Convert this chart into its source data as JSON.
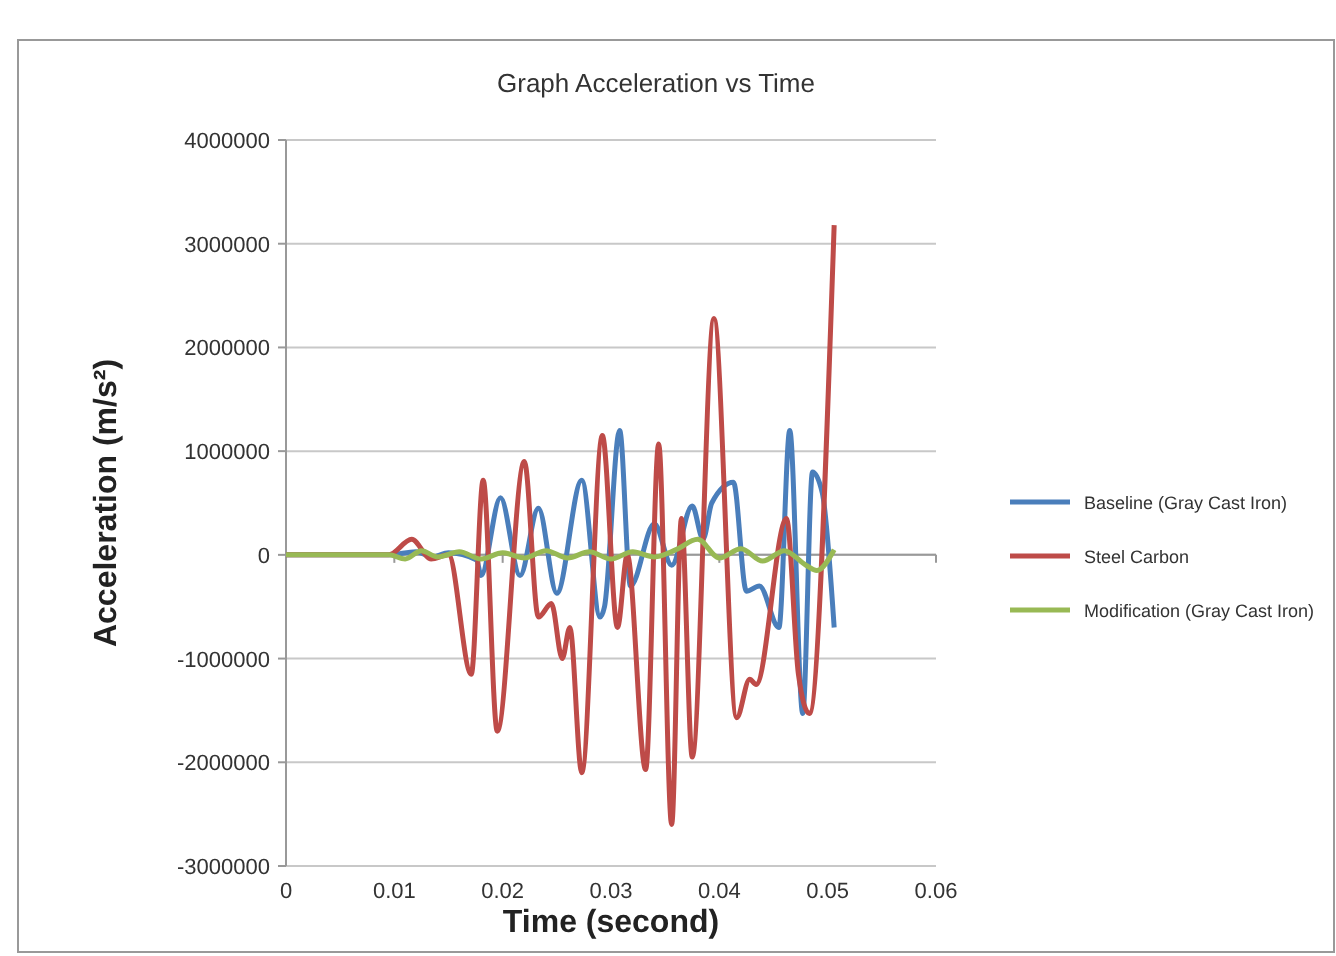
{
  "chart_data": {
    "type": "line",
    "title": "Graph Acceleration vs Time",
    "xlabel": "Time (second)",
    "ylabel": "Acceleration (m/s²)",
    "xlim": [
      0,
      0.06
    ],
    "xticks": [
      0,
      0.01,
      0.02,
      0.03,
      0.04,
      0.05,
      0.06
    ],
    "ylim": [
      -3000000,
      4000000
    ],
    "yticks": [
      -3000000,
      -2000000,
      -1000000,
      0,
      1000000,
      2000000,
      3000000,
      4000000
    ],
    "grid": "y",
    "legend": "right",
    "marker": "none",
    "line_style": "solid",
    "series": [
      {
        "name": "Baseline (Gray Cast Iron)",
        "color": "#4a7ebb",
        "x": [
          0,
          0.0095,
          0.012,
          0.0135,
          0.015,
          0.0176,
          0.018,
          0.0198,
          0.0216,
          0.0233,
          0.025,
          0.0273,
          0.029,
          0.0294,
          0.0308,
          0.0318,
          0.034,
          0.0356,
          0.0375,
          0.0385,
          0.0393,
          0.0413,
          0.0425,
          0.0437,
          0.0455,
          0.0465,
          0.0477,
          0.0486,
          0.0495,
          0.0506
        ],
        "values": [
          0,
          0,
          30000,
          -20000,
          20000,
          -50000,
          -200000,
          550000,
          -200000,
          450000,
          -370000,
          720000,
          -600000,
          -500000,
          1200000,
          -300000,
          300000,
          -100000,
          470000,
          150000,
          500000,
          700000,
          -350000,
          -300000,
          -700000,
          1200000,
          -1530000,
          800000,
          600000,
          -700000
        ]
      },
      {
        "name": "Steel Carbon",
        "color": "#be4b48",
        "x": [
          0,
          0.0095,
          0.0116,
          0.0134,
          0.015,
          0.0171,
          0.0182,
          0.0195,
          0.022,
          0.0233,
          0.0245,
          0.0255,
          0.0262,
          0.0273,
          0.0292,
          0.0306,
          0.0315,
          0.0332,
          0.0344,
          0.0356,
          0.0365,
          0.0375,
          0.0395,
          0.0416,
          0.0428,
          0.0434,
          0.0462,
          0.0473,
          0.0483,
          0.0506
        ],
        "values": [
          0,
          0,
          150000,
          -40000,
          0,
          -1150000,
          720000,
          -1700000,
          900000,
          -600000,
          -470000,
          -1000000,
          -700000,
          -2100000,
          1150000,
          -700000,
          0,
          -2070000,
          1070000,
          -2600000,
          350000,
          -1950000,
          2280000,
          -1570000,
          -1200000,
          -1250000,
          350000,
          -1150000,
          -1530000,
          3180000
        ]
      },
      {
        "name": "Modification (Gray Cast Iron)",
        "color": "#98b954",
        "x": [
          0,
          0.0095,
          0.011,
          0.0125,
          0.014,
          0.016,
          0.018,
          0.02,
          0.022,
          0.024,
          0.026,
          0.028,
          0.03,
          0.032,
          0.034,
          0.036,
          0.038,
          0.04,
          0.042,
          0.044,
          0.046,
          0.048,
          0.049,
          0.0506
        ],
        "values": [
          0,
          0,
          -40000,
          40000,
          -20000,
          30000,
          -40000,
          20000,
          -30000,
          40000,
          -30000,
          30000,
          -40000,
          30000,
          -20000,
          50000,
          150000,
          -30000,
          60000,
          -60000,
          40000,
          -100000,
          -150000,
          50000
        ]
      }
    ]
  }
}
